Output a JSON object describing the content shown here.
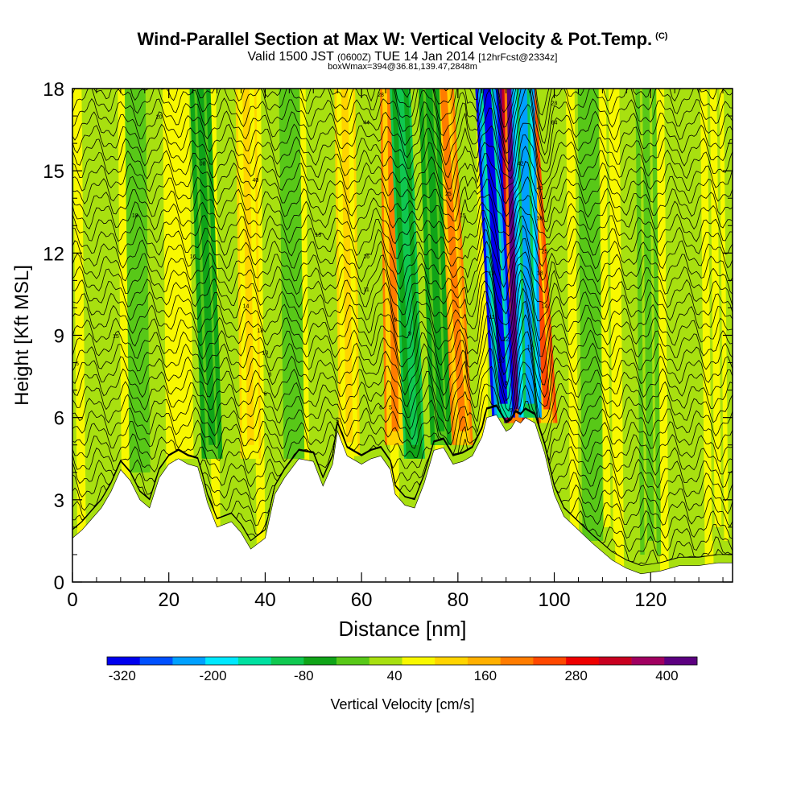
{
  "title": {
    "main": "Wind-Parallel Section at Max W: Vertical Velocity & Pot.Temp.",
    "copyright": "(C)",
    "valid_prefix": "Valid 1500 JST",
    "valid_zulu": "(0600Z)",
    "valid_date": "TUE 14 Jan 2014",
    "forecast": "[12hrFcst@2334z]",
    "boxinfo": "boxWmax=394@36.81,139.47,2848m"
  },
  "chart_data": {
    "type": "heatmap",
    "xlabel": "Distance [nm]",
    "ylabel": "Height [Kft MSL]",
    "xlim": [
      0,
      137
    ],
    "ylim": [
      0,
      18
    ],
    "x_ticks": [
      0,
      20,
      40,
      60,
      80,
      100,
      120
    ],
    "y_ticks": [
      0,
      3,
      6,
      9,
      12,
      15,
      18
    ],
    "colorbar": {
      "label": "Vertical Velocity [cm/s]",
      "min": -340,
      "max": 440,
      "step": 40,
      "tick_values": [
        -320,
        -200,
        -80,
        40,
        160,
        280,
        400
      ],
      "tick_labels": [
        "-320",
        "-200",
        "-80",
        "40",
        "160",
        "280",
        "400"
      ],
      "colors": [
        "#0000ee",
        "#0050ff",
        "#00a0ff",
        "#00e8ff",
        "#00e0a0",
        "#10c850",
        "#10a418",
        "#58c818",
        "#a8e010",
        "#f8f800",
        "#ffd400",
        "#ffb000",
        "#ff7c00",
        "#ff4800",
        "#ee0000",
        "#c80020",
        "#a00060",
        "#5c0080"
      ]
    },
    "terrain_top_kft": [
      [
        0,
        1.6
      ],
      [
        2,
        1.9
      ],
      [
        4,
        2.3
      ],
      [
        6,
        2.7
      ],
      [
        8,
        3.3
      ],
      [
        10,
        4.1
      ],
      [
        12,
        3.7
      ],
      [
        14,
        3.0
      ],
      [
        16,
        2.7
      ],
      [
        18,
        3.8
      ],
      [
        20,
        4.3
      ],
      [
        22,
        4.5
      ],
      [
        24,
        4.3
      ],
      [
        26,
        4.2
      ],
      [
        27,
        3.6
      ],
      [
        28,
        2.9
      ],
      [
        30,
        2.0
      ],
      [
        33,
        2.2
      ],
      [
        35,
        1.8
      ],
      [
        37,
        1.2
      ],
      [
        40,
        1.6
      ],
      [
        42,
        3.2
      ],
      [
        44,
        3.8
      ],
      [
        47,
        4.5
      ],
      [
        50,
        4.4
      ],
      [
        52,
        3.5
      ],
      [
        54,
        4.3
      ],
      [
        55,
        5.5
      ],
      [
        57,
        4.6
      ],
      [
        60,
        4.3
      ],
      [
        62,
        4.5
      ],
      [
        64,
        4.6
      ],
      [
        66,
        4.1
      ],
      [
        67,
        3.2
      ],
      [
        69,
        2.8
      ],
      [
        71,
        2.7
      ],
      [
        73,
        3.6
      ],
      [
        75,
        4.8
      ],
      [
        77,
        4.9
      ],
      [
        79,
        4.3
      ],
      [
        81,
        4.4
      ],
      [
        83,
        4.6
      ],
      [
        85,
        5.3
      ],
      [
        86,
        6.0
      ],
      [
        88,
        6.1
      ],
      [
        89,
        5.8
      ],
      [
        90,
        5.5
      ],
      [
        91,
        5.6
      ],
      [
        92,
        5.9
      ],
      [
        93,
        5.8
      ],
      [
        94,
        6.0
      ],
      [
        96,
        5.8
      ],
      [
        98,
        4.7
      ],
      [
        100,
        3.2
      ],
      [
        102,
        2.4
      ],
      [
        105,
        1.9
      ],
      [
        108,
        1.4
      ],
      [
        112,
        0.8
      ],
      [
        115,
        0.5
      ],
      [
        118,
        0.3
      ],
      [
        122,
        0.4
      ],
      [
        126,
        0.6
      ],
      [
        130,
        0.6
      ],
      [
        134,
        0.7
      ],
      [
        137,
        0.7
      ]
    ],
    "updraft_bands": [
      {
        "x_base": 92.0,
        "x_top": 91.0,
        "y_from": 5.8,
        "w": 394
      },
      {
        "x_base": 98.5,
        "x_top": 94.0,
        "y_from": 5.8,
        "w": 200
      },
      {
        "x_base": 67.0,
        "x_top": 66.0,
        "y_from": 5.0,
        "w": 140
      },
      {
        "x_base": 81.0,
        "x_top": 77.0,
        "y_from": 5.0,
        "w": 150
      },
      {
        "x_base": 57.5,
        "x_top": 56.5,
        "y_from": 4.6,
        "w": 80
      },
      {
        "x_base": 37.0,
        "x_top": 36.0,
        "y_from": 4.5,
        "w": 60
      },
      {
        "x_base": 23.0,
        "x_top": 22.0,
        "y_from": 4.5,
        "w": 50
      },
      {
        "x_base": 111.0,
        "x_top": 110.0,
        "y_from": 1.5,
        "w": 40
      },
      {
        "x_base": 134.0,
        "x_top": 133.0,
        "y_from": 1.5,
        "w": 40
      }
    ],
    "downdraft_bands": [
      {
        "x_base": 89.5,
        "x_top": 86.0,
        "y_from": 6.0,
        "w": -320
      },
      {
        "x_base": 95.0,
        "x_top": 93.5,
        "y_from": 6.0,
        "w": -260
      },
      {
        "x_base": 71.0,
        "x_top": 68.0,
        "y_from": 4.5,
        "w": -140
      },
      {
        "x_base": 76.5,
        "x_top": 74.0,
        "y_from": 5.0,
        "w": -100
      },
      {
        "x_base": 29.0,
        "x_top": 26.5,
        "y_from": 4.5,
        "w": -90
      },
      {
        "x_base": 14.0,
        "x_top": 13.0,
        "y_from": 4.0,
        "w": -60
      },
      {
        "x_base": 46.0,
        "x_top": 45.0,
        "y_from": 4.5,
        "w": -50
      },
      {
        "x_base": 108.0,
        "x_top": 107.0,
        "y_from": 1.5,
        "w": -60
      },
      {
        "x_base": 120.0,
        "x_top": 119.0,
        "y_from": 1.0,
        "w": -40
      }
    ],
    "contour_labels": [
      {
        "x": 18,
        "y": 16.9,
        "text": "20"
      },
      {
        "x": 27,
        "y": 15.2,
        "text": "08"
      },
      {
        "x": 38,
        "y": 14.6,
        "text": "40"
      },
      {
        "x": 61,
        "y": 16.7,
        "text": "44"
      },
      {
        "x": 64,
        "y": 17.7,
        "text": "28"
      },
      {
        "x": 100,
        "y": 17.4,
        "text": "28"
      },
      {
        "x": 100,
        "y": 16.7,
        "text": "64"
      },
      {
        "x": 13,
        "y": 13.3,
        "text": "18"
      },
      {
        "x": 25,
        "y": 11.8,
        "text": "16"
      },
      {
        "x": 36,
        "y": 10.0,
        "text": "14"
      },
      {
        "x": 39,
        "y": 9.1,
        "text": "18"
      },
      {
        "x": 40,
        "y": 8.3,
        "text": "10"
      },
      {
        "x": 41,
        "y": 7.5,
        "text": "8"
      },
      {
        "x": 40,
        "y": 6.8,
        "text": "6"
      },
      {
        "x": 51,
        "y": 12.6,
        "text": "13"
      },
      {
        "x": 61,
        "y": 11.8,
        "text": "16"
      },
      {
        "x": 61,
        "y": 10.6,
        "text": "11"
      },
      {
        "x": 78,
        "y": 14.1,
        "text": "25"
      },
      {
        "x": 81,
        "y": 13.3,
        "text": "15"
      },
      {
        "x": 9,
        "y": 8.9,
        "text": "15"
      },
      {
        "x": 1,
        "y": 7.9,
        "text": "5"
      },
      {
        "x": 93,
        "y": 15.2,
        "text": "42"
      },
      {
        "x": 97,
        "y": 14.3,
        "text": "40"
      },
      {
        "x": 97,
        "y": 13.2,
        "text": "36"
      },
      {
        "x": 98,
        "y": 12.0,
        "text": "25"
      },
      {
        "x": 97,
        "y": 11.2,
        "text": "18"
      },
      {
        "x": 98,
        "y": 10.0,
        "text": "14"
      },
      {
        "x": 95,
        "y": 8.5,
        "text": "12"
      },
      {
        "x": 96,
        "y": 7.1,
        "text": "8"
      },
      {
        "x": 96,
        "y": 5.5,
        "text": "5"
      },
      {
        "x": 87,
        "y": 11.2,
        "text": "13"
      },
      {
        "x": 87,
        "y": 9.6,
        "text": "11"
      },
      {
        "x": 90,
        "y": 8.8,
        "text": "12"
      },
      {
        "x": 89,
        "y": 8.0,
        "text": "10"
      },
      {
        "x": 90,
        "y": 7.2,
        "text": "8"
      },
      {
        "x": 91,
        "y": 6.2,
        "text": "6"
      },
      {
        "x": 67,
        "y": 9.5,
        "text": "9"
      },
      {
        "x": 70,
        "y": 9.0,
        "text": "9"
      },
      {
        "x": 64,
        "y": 6.3,
        "text": "6"
      },
      {
        "x": 66,
        "y": 6.3,
        "text": "5"
      },
      {
        "x": 55,
        "y": 5.8,
        "text": "5"
      }
    ]
  }
}
